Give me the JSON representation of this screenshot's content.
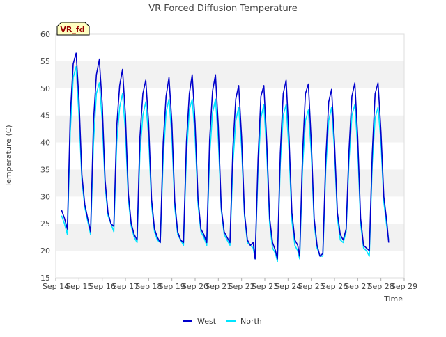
{
  "chart_data": {
    "type": "line",
    "title": "VR Forced Diffusion Temperature",
    "tag": "VR_fd",
    "xlabel": "Time",
    "ylabel": "Temperature (C)",
    "xlim": [
      "Sep 14",
      "Sep 29"
    ],
    "ylim": [
      15,
      60
    ],
    "x_ticks": [
      "Sep 14",
      "Sep 15",
      "Sep 16",
      "Sep 17",
      "Sep 18",
      "Sep 19",
      "Sep 20",
      "Sep 21",
      "Sep 22",
      "Sep 23",
      "Sep 24",
      "Sep 25",
      "Sep 26",
      "Sep 27",
      "Sep 28",
      "Sep 29"
    ],
    "y_ticks": [
      15,
      20,
      25,
      30,
      35,
      40,
      45,
      50,
      55,
      60
    ],
    "grid": "horizontal bands",
    "legend": "bottom-center",
    "series": [
      {
        "name": "West",
        "color": "#0000cc",
        "points": [
          [
            "Sep 14 06:00",
            27.5
          ],
          [
            "Sep 14 09:00",
            26.0
          ],
          [
            "Sep 14 12:00",
            24.0
          ],
          [
            "Sep 14 15:00",
            45.0
          ],
          [
            "Sep 14 18:00",
            54.5
          ],
          [
            "Sep 14 21:00",
            56.5
          ],
          [
            "Sep 15 00:00",
            48.0
          ],
          [
            "Sep 15 03:00",
            34.0
          ],
          [
            "Sep 15 06:00",
            28.5
          ],
          [
            "Sep 15 09:00",
            26.0
          ],
          [
            "Sep 15 12:00",
            23.5
          ],
          [
            "Sep 15 15:00",
            44.0
          ],
          [
            "Sep 15 18:00",
            52.5
          ],
          [
            "Sep 15 21:00",
            55.3
          ],
          [
            "Sep 16 00:00",
            47.0
          ],
          [
            "Sep 16 03:00",
            33.0
          ],
          [
            "Sep 16 06:00",
            27.0
          ],
          [
            "Sep 16 09:00",
            25.0
          ],
          [
            "Sep 16 12:00",
            24.5
          ],
          [
            "Sep 16 15:00",
            43.0
          ],
          [
            "Sep 16 18:00",
            50.5
          ],
          [
            "Sep 16 21:00",
            53.5
          ],
          [
            "Sep 17 00:00",
            45.0
          ],
          [
            "Sep 17 03:00",
            30.5
          ],
          [
            "Sep 17 06:00",
            25.0
          ],
          [
            "Sep 17 09:00",
            23.0
          ],
          [
            "Sep 17 12:00",
            22.0
          ],
          [
            "Sep 17 15:00",
            41.0
          ],
          [
            "Sep 17 18:00",
            49.0
          ],
          [
            "Sep 17 21:00",
            51.5
          ],
          [
            "Sep 18 00:00",
            43.5
          ],
          [
            "Sep 18 03:00",
            29.5
          ],
          [
            "Sep 18 06:00",
            24.0
          ],
          [
            "Sep 18 09:00",
            22.5
          ],
          [
            "Sep 18 12:00",
            21.5
          ],
          [
            "Sep 18 15:00",
            40.0
          ],
          [
            "Sep 18 18:00",
            48.5
          ],
          [
            "Sep 18 21:00",
            52.0
          ],
          [
            "Sep 19 00:00",
            43.5
          ],
          [
            "Sep 19 03:00",
            29.0
          ],
          [
            "Sep 19 06:00",
            23.5
          ],
          [
            "Sep 19 09:00",
            22.0
          ],
          [
            "Sep 19 12:00",
            21.5
          ],
          [
            "Sep 19 15:00",
            40.0
          ],
          [
            "Sep 19 18:00",
            49.0
          ],
          [
            "Sep 19 21:00",
            52.5
          ],
          [
            "Sep 20 00:00",
            43.5
          ],
          [
            "Sep 20 03:00",
            29.5
          ],
          [
            "Sep 20 06:00",
            24.0
          ],
          [
            "Sep 20 09:00",
            23.0
          ],
          [
            "Sep 20 12:00",
            21.5
          ],
          [
            "Sep 20 15:00",
            40.5
          ],
          [
            "Sep 20 18:00",
            49.5
          ],
          [
            "Sep 20 21:00",
            52.5
          ],
          [
            "Sep 21 00:00",
            43.0
          ],
          [
            "Sep 21 03:00",
            28.0
          ],
          [
            "Sep 21 06:00",
            23.5
          ],
          [
            "Sep 21 09:00",
            22.5
          ],
          [
            "Sep 21 12:00",
            21.5
          ],
          [
            "Sep 21 15:00",
            39.0
          ],
          [
            "Sep 21 18:00",
            48.0
          ],
          [
            "Sep 21 21:00",
            50.5
          ],
          [
            "Sep 22 00:00",
            41.0
          ],
          [
            "Sep 22 03:00",
            27.0
          ],
          [
            "Sep 22 06:00",
            22.0
          ],
          [
            "Sep 22 09:00",
            21.0
          ],
          [
            "Sep 22 12:00",
            21.5
          ],
          [
            "Sep 22 14:00",
            18.5
          ],
          [
            "Sep 22 17:00",
            37.0
          ],
          [
            "Sep 22 20:00",
            48.5
          ],
          [
            "Sep 22 23:00",
            50.5
          ],
          [
            "Sep 23 02:00",
            40.0
          ],
          [
            "Sep 23 05:00",
            26.0
          ],
          [
            "Sep 23 08:00",
            21.5
          ],
          [
            "Sep 23 11:00",
            20.0
          ],
          [
            "Sep 23 13:00",
            18.5
          ],
          [
            "Sep 23 16:00",
            38.0
          ],
          [
            "Sep 23 19:00",
            49.0
          ],
          [
            "Sep 23 22:00",
            51.5
          ],
          [
            "Sep 24 01:00",
            41.0
          ],
          [
            "Sep 24 04:00",
            27.0
          ],
          [
            "Sep 24 07:00",
            22.0
          ],
          [
            "Sep 24 10:00",
            21.0
          ],
          [
            "Sep 24 12:00",
            19.0
          ],
          [
            "Sep 24 15:00",
            38.0
          ],
          [
            "Sep 24 18:00",
            49.0
          ],
          [
            "Sep 24 21:00",
            50.8
          ],
          [
            "Sep 25 00:00",
            40.0
          ],
          [
            "Sep 25 03:00",
            26.0
          ],
          [
            "Sep 25 06:00",
            21.0
          ],
          [
            "Sep 25 09:00",
            19.0
          ],
          [
            "Sep 25 12:00",
            19.5
          ],
          [
            "Sep 25 15:00",
            37.0
          ],
          [
            "Sep 25 18:00",
            47.5
          ],
          [
            "Sep 25 21:00",
            49.8
          ],
          [
            "Sep 26 00:00",
            40.0
          ],
          [
            "Sep 26 03:00",
            27.0
          ],
          [
            "Sep 26 06:00",
            23.0
          ],
          [
            "Sep 26 09:00",
            22.0
          ],
          [
            "Sep 26 12:00",
            24.0
          ],
          [
            "Sep 26 15:00",
            38.5
          ],
          [
            "Sep 26 18:00",
            48.5
          ],
          [
            "Sep 26 21:00",
            51.0
          ],
          [
            "Sep 27 00:00",
            41.0
          ],
          [
            "Sep 27 03:00",
            26.0
          ],
          [
            "Sep 27 06:00",
            21.0
          ],
          [
            "Sep 27 09:00",
            20.5
          ],
          [
            "Sep 27 12:00",
            20.0
          ],
          [
            "Sep 27 15:00",
            38.0
          ],
          [
            "Sep 27 18:00",
            49.0
          ],
          [
            "Sep 27 21:00",
            51.0
          ],
          [
            "Sep 28 00:00",
            42.0
          ],
          [
            "Sep 28 03:00",
            30.0
          ],
          [
            "Sep 28 06:00",
            25.5
          ],
          [
            "Sep 28 08:00",
            21.5
          ]
        ]
      },
      {
        "name": "North",
        "color": "#00e5ff",
        "points": [
          [
            "Sep 14 06:00",
            26.5
          ],
          [
            "Sep 14 09:00",
            25.0
          ],
          [
            "Sep 14 12:00",
            23.0
          ],
          [
            "Sep 14 15:00",
            42.0
          ],
          [
            "Sep 14 18:00",
            52.0
          ],
          [
            "Sep 14 21:00",
            54.0
          ],
          [
            "Sep 15 00:00",
            45.0
          ],
          [
            "Sep 15 03:00",
            33.0
          ],
          [
            "Sep 15 06:00",
            28.0
          ],
          [
            "Sep 15 09:00",
            25.5
          ],
          [
            "Sep 15 12:00",
            23.0
          ],
          [
            "Sep 15 15:00",
            40.0
          ],
          [
            "Sep 15 18:00",
            49.0
          ],
          [
            "Sep 15 21:00",
            51.0
          ],
          [
            "Sep 16 00:00",
            44.0
          ],
          [
            "Sep 16 03:00",
            32.0
          ],
          [
            "Sep 16 06:00",
            26.5
          ],
          [
            "Sep 16 09:00",
            25.0
          ],
          [
            "Sep 16 12:00",
            23.5
          ],
          [
            "Sep 16 15:00",
            40.0
          ],
          [
            "Sep 16 18:00",
            46.5
          ],
          [
            "Sep 16 21:00",
            49.0
          ],
          [
            "Sep 17 00:00",
            42.0
          ],
          [
            "Sep 17 03:00",
            29.5
          ],
          [
            "Sep 17 06:00",
            24.5
          ],
          [
            "Sep 17 09:00",
            22.5
          ],
          [
            "Sep 17 12:00",
            21.5
          ],
          [
            "Sep 17 15:00",
            38.0
          ],
          [
            "Sep 17 18:00",
            45.0
          ],
          [
            "Sep 17 21:00",
            47.5
          ],
          [
            "Sep 18 00:00",
            41.0
          ],
          [
            "Sep 18 03:00",
            28.5
          ],
          [
            "Sep 18 06:00",
            23.5
          ],
          [
            "Sep 18 09:00",
            22.0
          ],
          [
            "Sep 18 12:00",
            21.5
          ],
          [
            "Sep 18 15:00",
            37.0
          ],
          [
            "Sep 18 18:00",
            45.5
          ],
          [
            "Sep 18 21:00",
            48.0
          ],
          [
            "Sep 19 00:00",
            41.0
          ],
          [
            "Sep 19 03:00",
            28.0
          ],
          [
            "Sep 19 06:00",
            23.0
          ],
          [
            "Sep 19 09:00",
            22.0
          ],
          [
            "Sep 19 12:00",
            21.0
          ],
          [
            "Sep 19 15:00",
            37.5
          ],
          [
            "Sep 19 18:00",
            46.0
          ],
          [
            "Sep 19 21:00",
            48.0
          ],
          [
            "Sep 20 00:00",
            41.0
          ],
          [
            "Sep 20 03:00",
            28.5
          ],
          [
            "Sep 20 06:00",
            23.5
          ],
          [
            "Sep 20 09:00",
            22.5
          ],
          [
            "Sep 20 12:00",
            21.0
          ],
          [
            "Sep 20 15:00",
            37.5
          ],
          [
            "Sep 20 18:00",
            45.5
          ],
          [
            "Sep 20 21:00",
            48.0
          ],
          [
            "Sep 21 00:00",
            40.5
          ],
          [
            "Sep 21 03:00",
            27.5
          ],
          [
            "Sep 21 06:00",
            23.0
          ],
          [
            "Sep 21 09:00",
            22.0
          ],
          [
            "Sep 21 12:00",
            21.0
          ],
          [
            "Sep 21 15:00",
            36.0
          ],
          [
            "Sep 21 18:00",
            44.0
          ],
          [
            "Sep 21 21:00",
            46.5
          ],
          [
            "Sep 22 00:00",
            39.0
          ],
          [
            "Sep 22 03:00",
            26.5
          ],
          [
            "Sep 22 06:00",
            21.5
          ],
          [
            "Sep 22 09:00",
            21.0
          ],
          [
            "Sep 22 12:00",
            20.5
          ],
          [
            "Sep 22 14:00",
            18.5
          ],
          [
            "Sep 22 17:00",
            35.0
          ],
          [
            "Sep 22 20:00",
            44.5
          ],
          [
            "Sep 22 23:00",
            47.0
          ],
          [
            "Sep 23 02:00",
            38.0
          ],
          [
            "Sep 23 05:00",
            25.0
          ],
          [
            "Sep 23 08:00",
            20.5
          ],
          [
            "Sep 23 11:00",
            19.5
          ],
          [
            "Sep 23 13:00",
            18.0
          ],
          [
            "Sep 23 16:00",
            36.0
          ],
          [
            "Sep 23 19:00",
            45.0
          ],
          [
            "Sep 23 22:00",
            47.0
          ],
          [
            "Sep 24 01:00",
            38.5
          ],
          [
            "Sep 24 04:00",
            25.5
          ],
          [
            "Sep 24 07:00",
            21.0
          ],
          [
            "Sep 24 10:00",
            20.0
          ],
          [
            "Sep 24 12:00",
            18.5
          ],
          [
            "Sep 24 15:00",
            35.5
          ],
          [
            "Sep 24 18:00",
            44.0
          ],
          [
            "Sep 24 21:00",
            46.0
          ],
          [
            "Sep 25 00:00",
            38.0
          ],
          [
            "Sep 25 03:00",
            25.0
          ],
          [
            "Sep 25 06:00",
            20.5
          ],
          [
            "Sep 25 09:00",
            19.0
          ],
          [
            "Sep 25 12:00",
            19.0
          ],
          [
            "Sep 25 15:00",
            35.0
          ],
          [
            "Sep 25 18:00",
            44.0
          ],
          [
            "Sep 25 21:00",
            46.5
          ],
          [
            "Sep 26 00:00",
            38.5
          ],
          [
            "Sep 26 03:00",
            26.0
          ],
          [
            "Sep 26 06:00",
            22.0
          ],
          [
            "Sep 26 09:00",
            21.5
          ],
          [
            "Sep 26 12:00",
            23.5
          ],
          [
            "Sep 26 15:00",
            36.5
          ],
          [
            "Sep 26 18:00",
            45.0
          ],
          [
            "Sep 26 21:00",
            47.0
          ],
          [
            "Sep 27 00:00",
            39.0
          ],
          [
            "Sep 27 03:00",
            25.0
          ],
          [
            "Sep 27 06:00",
            20.5
          ],
          [
            "Sep 27 09:00",
            20.0
          ],
          [
            "Sep 27 12:00",
            19.0
          ],
          [
            "Sep 27 15:00",
            36.0
          ],
          [
            "Sep 27 18:00",
            44.5
          ],
          [
            "Sep 27 21:00",
            46.5
          ],
          [
            "Sep 28 00:00",
            40.0
          ],
          [
            "Sep 28 03:00",
            29.0
          ],
          [
            "Sep 28 06:00",
            24.5
          ],
          [
            "Sep 28 08:00",
            22.0
          ]
        ]
      }
    ]
  }
}
